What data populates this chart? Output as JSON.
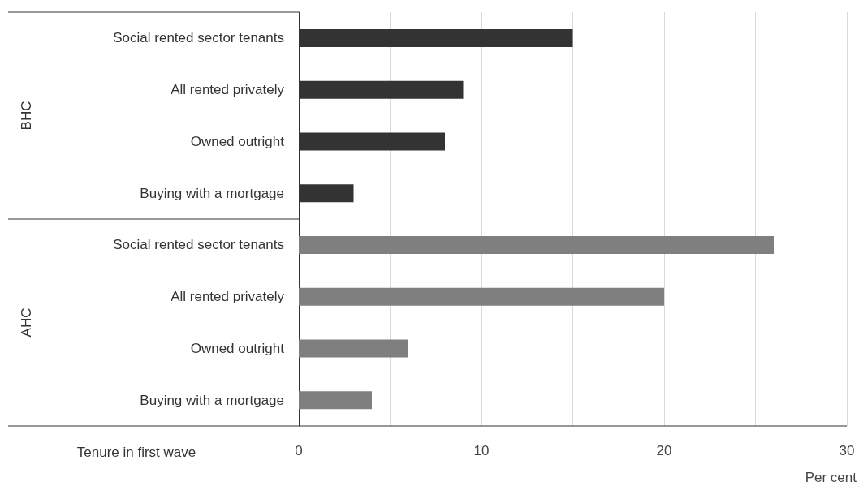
{
  "chart_data": {
    "type": "bar",
    "orientation": "horizontal",
    "ylabel": "Tenure in first wave",
    "xlabel": "Per cent",
    "categories": [
      "Social rented sector tenants",
      "All rented privately",
      "Owned outright",
      "Buying with a mortgage",
      "Social rented sector tenants",
      "All rented privately",
      "Owned outright",
      "Buying with a mortgage"
    ],
    "values": [
      15,
      9,
      8,
      3,
      26,
      20,
      6,
      4
    ],
    "colors": [
      "#333333",
      "#333333",
      "#333333",
      "#333333",
      "#7f7f7f",
      "#7f7f7f",
      "#7f7f7f",
      "#7f7f7f"
    ],
    "annotations": [
      "BHC",
      "AHC"
    ],
    "xlim": [
      0,
      30
    ],
    "xticks": [
      0,
      10,
      20,
      30
    ],
    "grid": "x"
  }
}
